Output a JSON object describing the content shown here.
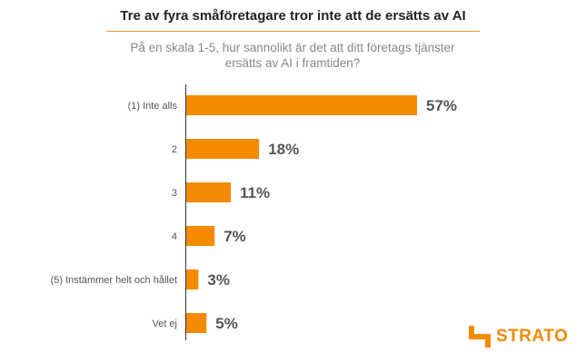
{
  "title": "Tre av fyra småföretagare tror inte att de ersätts av AI",
  "subtitle": "På en skala 1-5, hur sannolikt är det att ditt företags tjänster ersätts av AI i framtiden?",
  "brand": {
    "name": "STRATO",
    "color": "#f38a00"
  },
  "chart_data": {
    "type": "bar",
    "orientation": "horizontal",
    "categories": [
      "(1) Inte alls",
      "2",
      "3",
      "4",
      "(5) Instämmer helt och hållet",
      "Vet ej"
    ],
    "values": [
      57,
      18,
      11,
      7,
      3,
      5
    ],
    "value_labels": [
      "57%",
      "18%",
      "11%",
      "7%",
      "3%",
      "5%"
    ],
    "unit": "%",
    "xlim": [
      0,
      100
    ],
    "bar_color": "#f38a00",
    "grid": false,
    "legend": "none"
  }
}
